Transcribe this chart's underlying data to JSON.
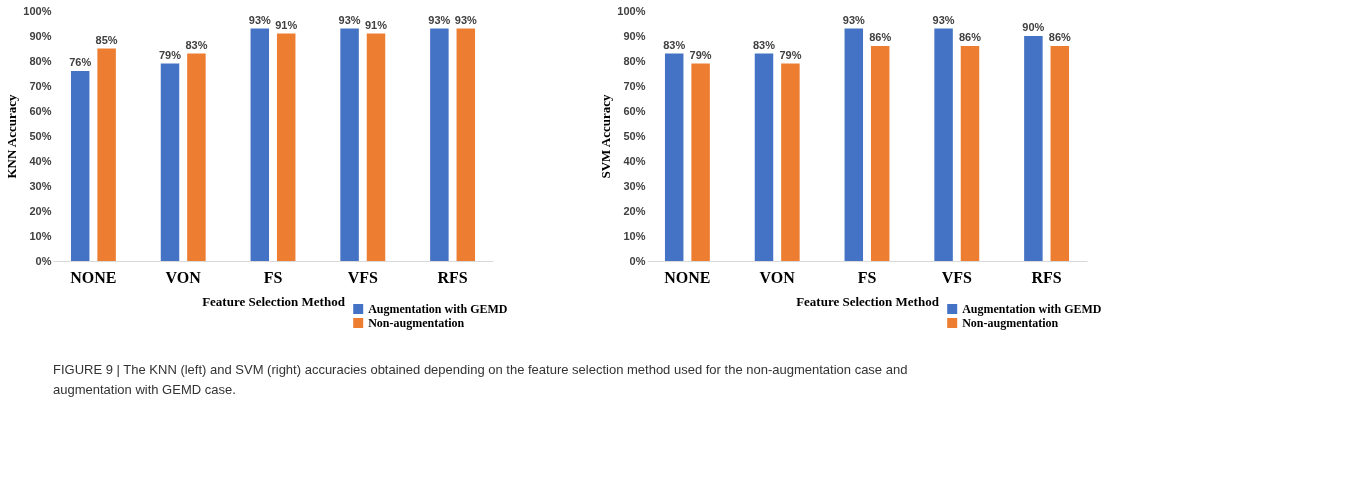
{
  "chart_data": [
    {
      "type": "bar",
      "xlabel": "Feature Selection Method",
      "ylabel": "KNN    Accuracy",
      "categories": [
        "NONE",
        "VON",
        "FS",
        "VFS",
        "RFS"
      ],
      "series": [
        {
          "name": "Augmentation with GEMD",
          "color": "#4472c4",
          "values": [
            76,
            79,
            93,
            93,
            93
          ],
          "value_labels": [
            "76%",
            "79%",
            "93%",
            "93%",
            "93%"
          ]
        },
        {
          "name": "Non-augmentation",
          "color": "#ed7d31",
          "values": [
            85,
            83,
            91,
            91,
            93
          ],
          "value_labels": [
            "85%",
            "83%",
            "91%",
            "91%",
            "93%"
          ]
        }
      ],
      "ylim": [
        0,
        100
      ],
      "yticks": [
        {
          "value": 0,
          "label": "0%"
        },
        {
          "value": 10,
          "label": "10%"
        },
        {
          "value": 20,
          "label": "20%"
        },
        {
          "value": 30,
          "label": "30%"
        },
        {
          "value": 40,
          "label": "40%"
        },
        {
          "value": 50,
          "label": "50%"
        },
        {
          "value": 60,
          "label": "60%"
        },
        {
          "value": 70,
          "label": "70%"
        },
        {
          "value": 80,
          "label": "80%"
        },
        {
          "value": 90,
          "label": "90%"
        },
        {
          "value": 100,
          "label": "100%"
        }
      ],
      "grid": false,
      "legend": "bottom right",
      "annotations": [
        "FIGURE 9 | The KNN (left) and SVM (right) accuracies obtained depending on the feature selection method used for the non-augmentation case and augmentation with GEMD case."
      ]
    },
    {
      "type": "bar",
      "xlabel": "Feature Selection Method",
      "ylabel": "SVM    Accuracy",
      "categories": [
        "NONE",
        "VON",
        "FS",
        "VFS",
        "RFS"
      ],
      "series": [
        {
          "name": "Augmentation with GEMD",
          "color": "#4472c4",
          "values": [
            83,
            83,
            93,
            93,
            90
          ],
          "value_labels": [
            "83%",
            "83%",
            "93%",
            "93%",
            "90%"
          ]
        },
        {
          "name": "Non-augmentation",
          "color": "#ed7d31",
          "values": [
            79,
            79,
            86,
            86,
            86
          ],
          "value_labels": [
            "79%",
            "79%",
            "86%",
            "86%",
            "86%"
          ]
        }
      ],
      "ylim": [
        0,
        100
      ],
      "yticks": [
        {
          "value": 0,
          "label": "0%"
        },
        {
          "value": 10,
          "label": "10%"
        },
        {
          "value": 20,
          "label": "20%"
        },
        {
          "value": 30,
          "label": "30%"
        },
        {
          "value": 40,
          "label": "40%"
        },
        {
          "value": 50,
          "label": "50%"
        },
        {
          "value": 60,
          "label": "60%"
        },
        {
          "value": 70,
          "label": "70%"
        },
        {
          "value": 80,
          "label": "80%"
        },
        {
          "value": 90,
          "label": "90%"
        },
        {
          "value": 100,
          "label": "100%"
        }
      ],
      "grid": false,
      "legend": "bottom right"
    }
  ]
}
